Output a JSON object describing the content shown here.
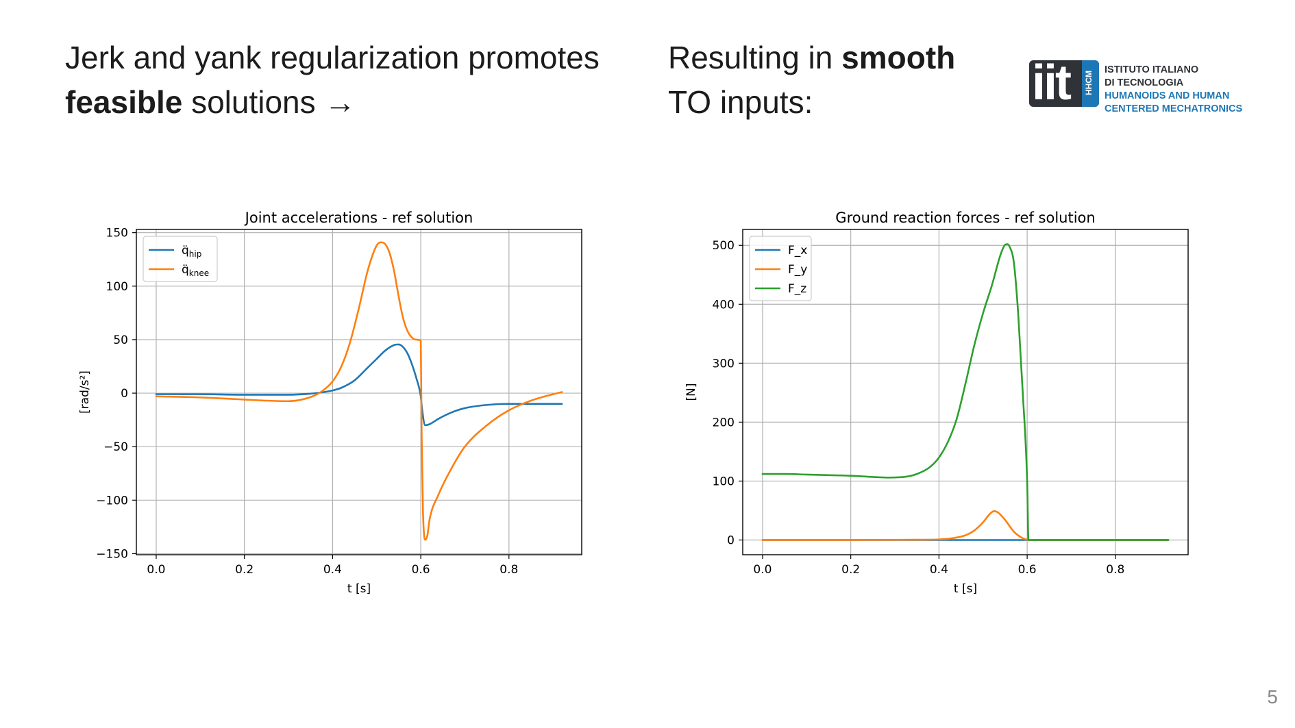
{
  "slide": {
    "left_heading": {
      "line1": "Jerk and yank regularization promotes",
      "bold": "feasible",
      "rest": " solutions →"
    },
    "right_heading": {
      "pre": "Resulting in ",
      "bold": "smooth",
      "line2": "TO inputs:"
    },
    "logo": {
      "mark": "iit",
      "tag": "HHCM",
      "lines": [
        "ISTITUTO ITALIANO",
        "DI TECNOLOGIA",
        "HUMANOIDS AND HUMAN",
        "CENTERED MECHATRONICS"
      ]
    },
    "page_number": "5"
  },
  "chart_data": [
    {
      "type": "line",
      "title": "Joint accelerations - ref solution",
      "xlabel": "t [s]",
      "ylabel": "[rad/s²]",
      "xlim": [
        -0.045,
        0.965
      ],
      "ylim": [
        -151,
        153
      ],
      "xticks": [
        0.0,
        0.2,
        0.4,
        0.6,
        0.8
      ],
      "xtick_labels": [
        "0.0",
        "0.2",
        "0.4",
        "0.6",
        "0.8"
      ],
      "yticks": [
        150,
        100,
        50,
        0,
        -50,
        -100,
        -150
      ],
      "ytick_labels": [
        "150",
        "100",
        "50",
        "0",
        "−50",
        "−100",
        "−150"
      ],
      "grid": true,
      "legend": "upper-left",
      "series": [
        {
          "name": "q̈_hip",
          "legend_base": "q̈",
          "legend_sub": "hip",
          "color": "#1f77b4",
          "x": [
            0.0,
            0.1,
            0.2,
            0.3,
            0.35,
            0.38,
            0.4,
            0.42,
            0.45,
            0.48,
            0.5,
            0.52,
            0.54,
            0.55,
            0.56,
            0.57,
            0.58,
            0.59,
            0.6,
            0.603,
            0.61,
            0.62,
            0.64,
            0.67,
            0.7,
            0.75,
            0.8,
            0.85,
            0.9,
            0.92
          ],
          "y": [
            -1,
            -1,
            -1.5,
            -1.5,
            -0.5,
            1,
            2.5,
            5,
            12,
            24,
            32,
            40,
            45,
            45.5,
            43,
            37,
            27,
            14,
            -3,
            -15,
            -30,
            -29,
            -24,
            -18,
            -14,
            -11,
            -10,
            -10,
            -10,
            -10
          ]
        },
        {
          "name": "q̈_knee",
          "legend_base": "q̈",
          "legend_sub": "knee",
          "color": "#ff7f0e",
          "x": [
            0.0,
            0.1,
            0.2,
            0.25,
            0.3,
            0.33,
            0.36,
            0.38,
            0.4,
            0.42,
            0.44,
            0.46,
            0.48,
            0.5,
            0.51,
            0.52,
            0.53,
            0.54,
            0.55,
            0.56,
            0.57,
            0.58,
            0.59,
            0.6,
            0.602,
            0.605,
            0.61,
            0.615,
            0.62,
            0.64,
            0.67,
            0.7,
            0.75,
            0.8,
            0.85,
            0.9,
            0.92
          ],
          "y": [
            -3,
            -4,
            -6,
            -7,
            -7.5,
            -6,
            -2,
            3,
            11,
            25,
            48,
            80,
            115,
            138,
            141,
            139,
            130,
            113,
            90,
            70,
            58,
            52,
            50,
            49,
            -40,
            -110,
            -137,
            -133,
            -118,
            -95,
            -70,
            -50,
            -30,
            -16,
            -7,
            -1,
            1
          ]
        }
      ]
    },
    {
      "type": "line",
      "title": "Ground reaction forces - ref solution",
      "xlabel": "t [s]",
      "ylabel": "[N]",
      "xlim": [
        -0.045,
        0.965
      ],
      "ylim": [
        -25,
        527
      ],
      "xticks": [
        0.0,
        0.2,
        0.4,
        0.6,
        0.8
      ],
      "xtick_labels": [
        "0.0",
        "0.2",
        "0.4",
        "0.6",
        "0.8"
      ],
      "yticks": [
        500,
        400,
        300,
        200,
        100,
        0
      ],
      "ytick_labels": [
        "500",
        "400",
        "300",
        "200",
        "100",
        "0"
      ],
      "grid": true,
      "legend": "upper-left",
      "series": [
        {
          "name": "F_x",
          "color": "#1f77b4",
          "x": [
            0.0,
            0.2,
            0.4,
            0.6,
            0.8,
            0.92
          ],
          "y": [
            0,
            0,
            0,
            0,
            0,
            0
          ]
        },
        {
          "name": "F_y",
          "color": "#ff7f0e",
          "x": [
            0.0,
            0.2,
            0.35,
            0.4,
            0.43,
            0.46,
            0.48,
            0.5,
            0.515,
            0.525,
            0.535,
            0.55,
            0.57,
            0.59,
            0.6,
            0.61,
            0.8,
            0.92
          ],
          "y": [
            0,
            0,
            0.5,
            1,
            3,
            8,
            16,
            30,
            44,
            49,
            46,
            34,
            14,
            3,
            0.5,
            0,
            0,
            0
          ]
        },
        {
          "name": "F_z",
          "color": "#2ca02c",
          "x": [
            0.0,
            0.05,
            0.1,
            0.15,
            0.2,
            0.25,
            0.28,
            0.32,
            0.35,
            0.38,
            0.4,
            0.42,
            0.44,
            0.46,
            0.48,
            0.5,
            0.52,
            0.54,
            0.55,
            0.555,
            0.56,
            0.57,
            0.58,
            0.59,
            0.6,
            0.603,
            0.61,
            0.8,
            0.92
          ],
          "y": [
            112,
            112,
            111,
            110,
            109,
            107,
            106,
            107,
            112,
            124,
            140,
            166,
            205,
            265,
            330,
            385,
            432,
            485,
            501,
            502,
            498,
            470,
            380,
            250,
            100,
            0,
            0,
            0,
            0
          ]
        }
      ]
    }
  ]
}
